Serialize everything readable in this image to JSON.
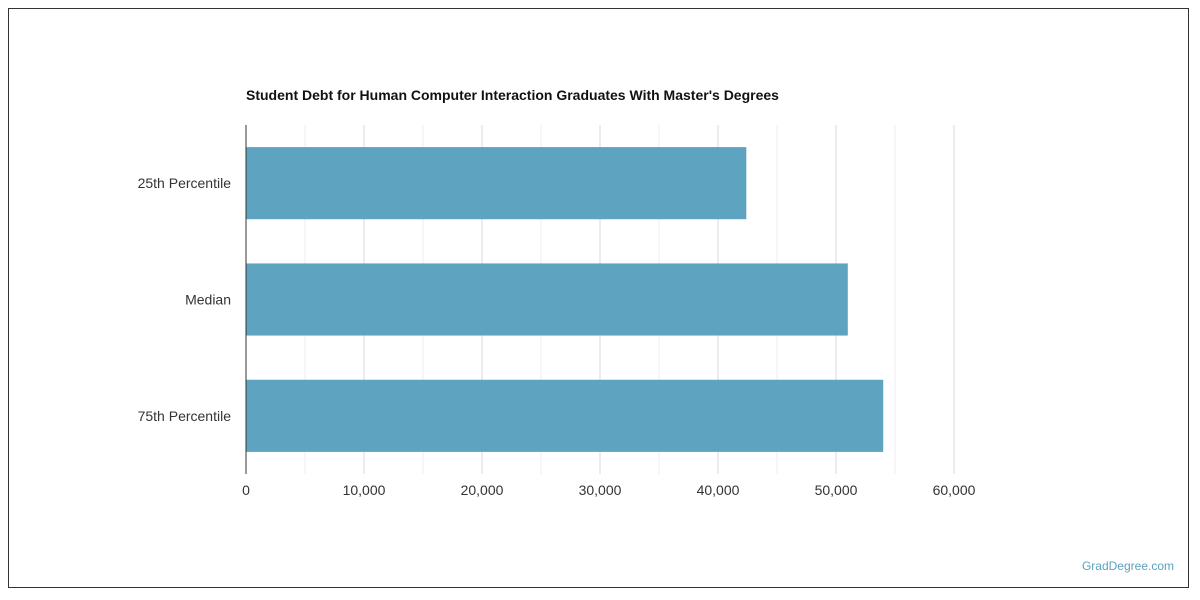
{
  "chart_data": {
    "type": "bar",
    "orientation": "horizontal",
    "title": "Student Debt for Human Computer Interaction Graduates With Master's Degrees",
    "categories": [
      "25th Percentile",
      "Median",
      "75th Percentile"
    ],
    "values": [
      42400,
      51000,
      54000
    ],
    "xlim": [
      0,
      65000
    ],
    "x_ticks": [
      0,
      10000,
      20000,
      30000,
      40000,
      50000,
      60000
    ],
    "x_tick_labels": [
      "0",
      "10,000",
      "20,000",
      "30,000",
      "40,000",
      "50,000",
      "60,000"
    ],
    "grid": true,
    "bar_color": "#5ea3bf",
    "grid_color": "#d9d9d9",
    "axis_color": "#333333"
  },
  "watermark": "GradDegree.com"
}
